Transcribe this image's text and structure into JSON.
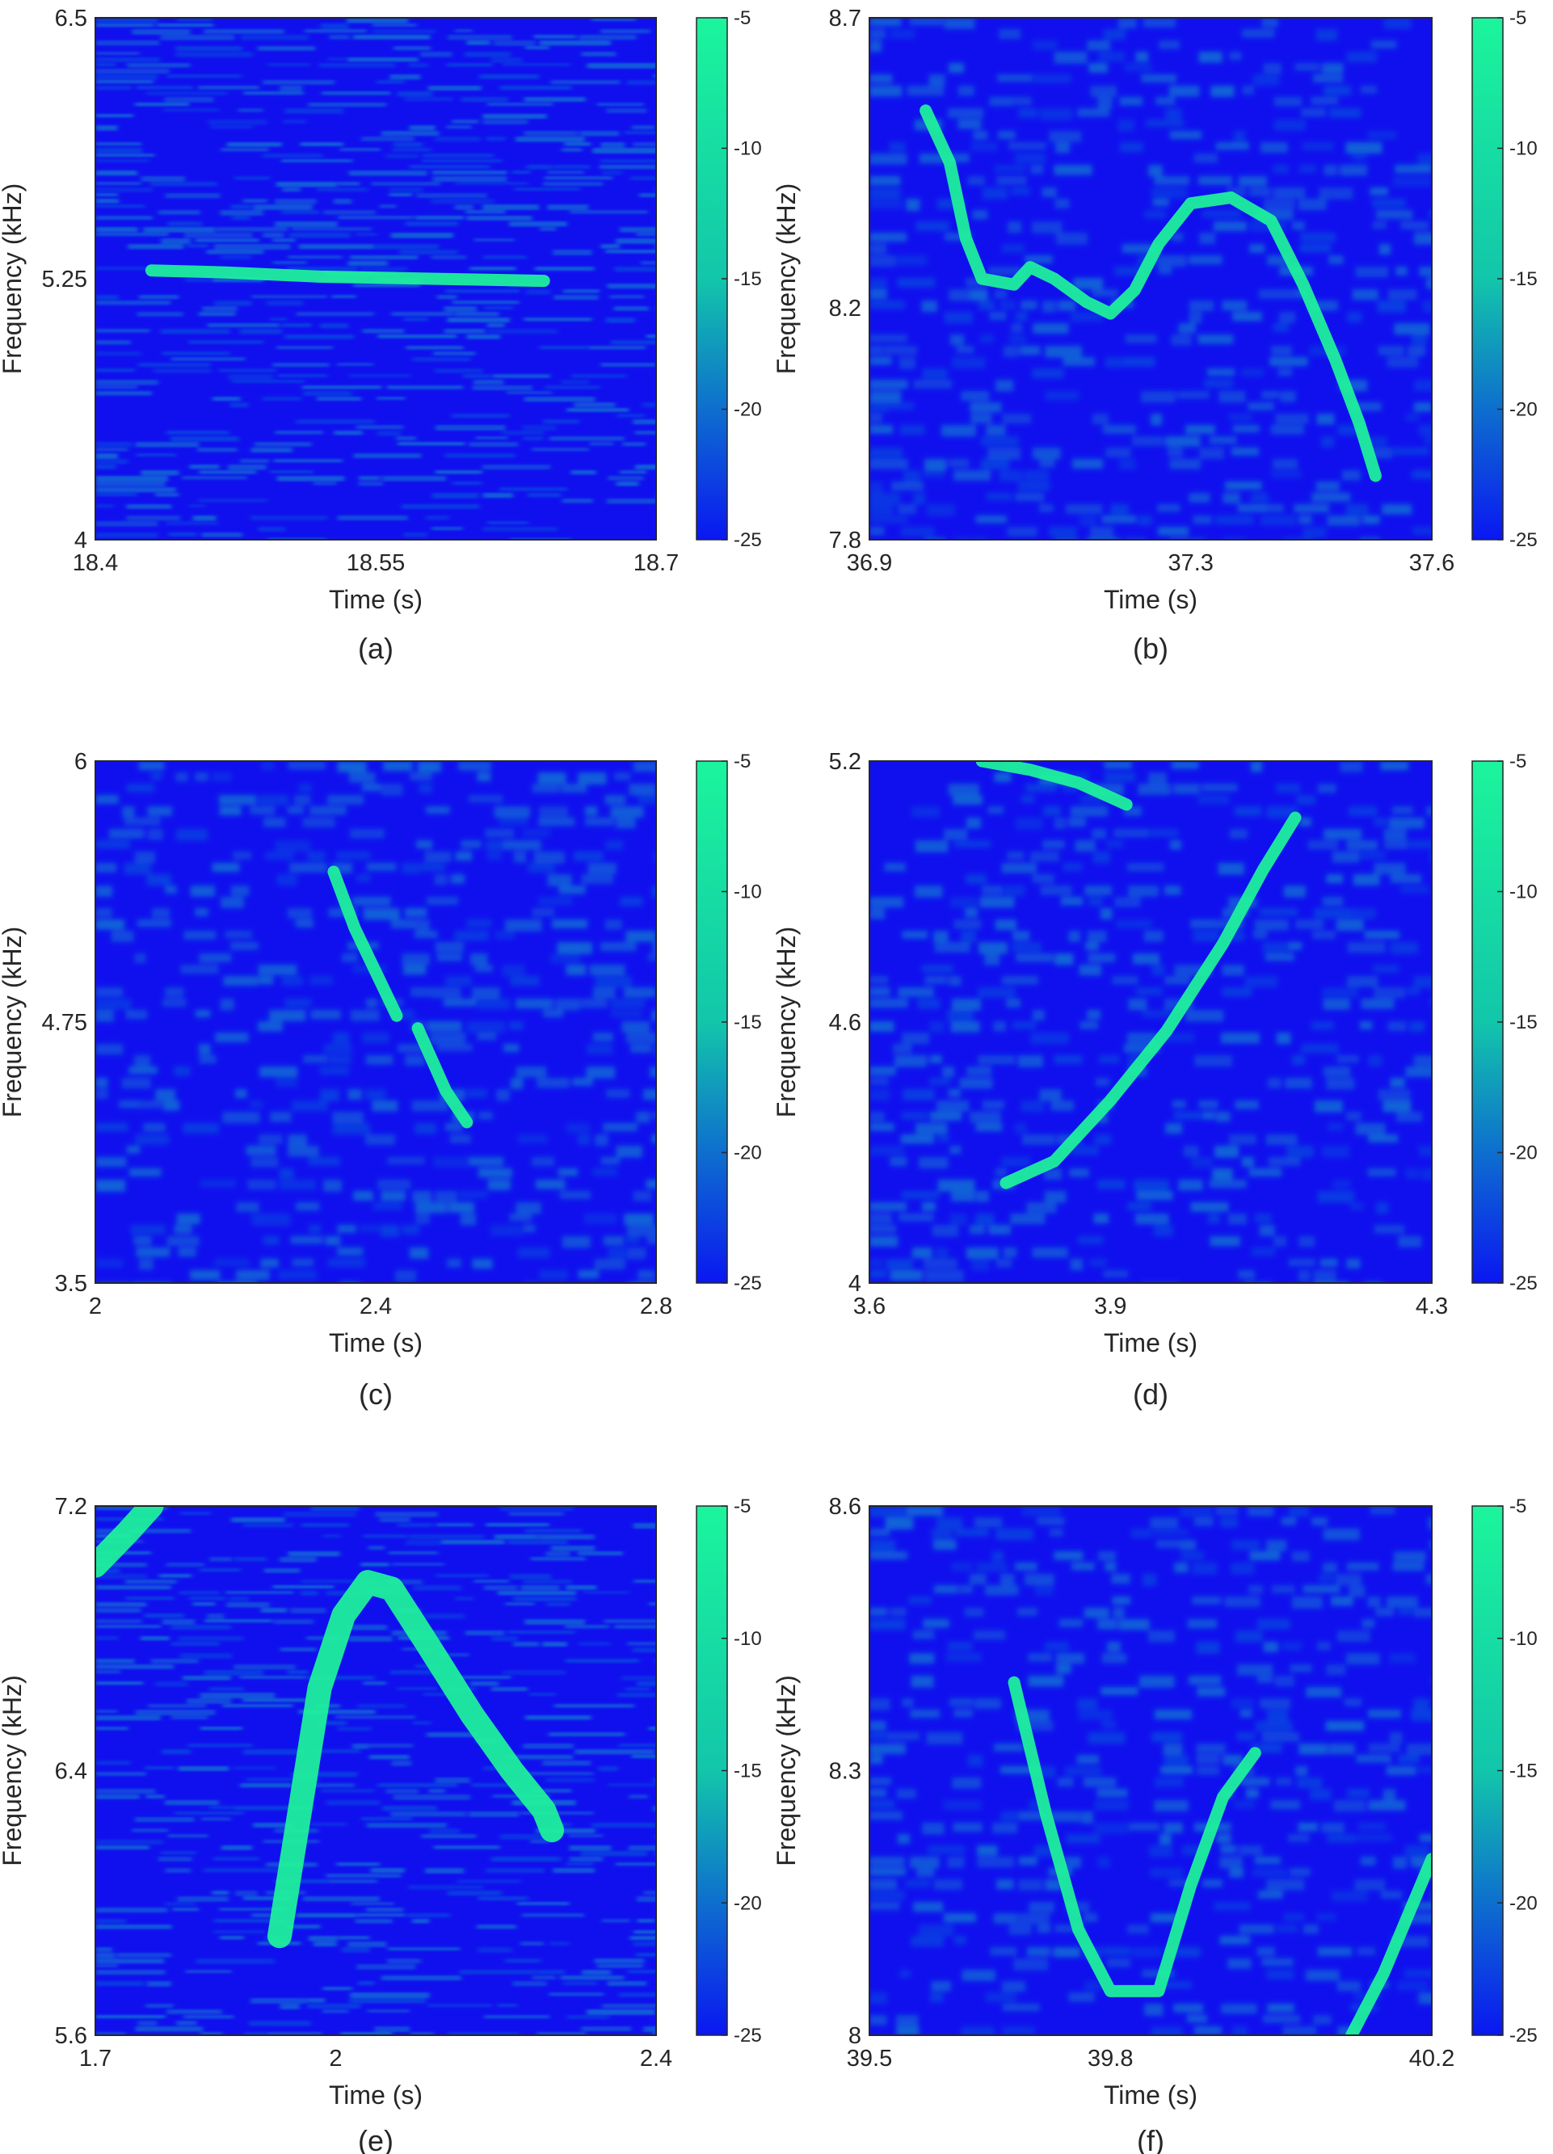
{
  "figure": {
    "colorbar": {
      "ticks": [
        "-5",
        "-10",
        "-15",
        "-20",
        "-25"
      ],
      "min": -25,
      "max": -5,
      "colormap": [
        "#0a17f2",
        "#12c6aa",
        "#1bf59c"
      ]
    },
    "colors": {
      "background": "#1010ee",
      "noise": "#0f7ad2",
      "ridge": "#1ef59a",
      "frame": "#262626"
    }
  },
  "chart_data": [
    {
      "type": "heatmap",
      "caption": "(a)",
      "xlabel": "Time (s)",
      "ylabel": "Frequency (kHz)",
      "xlim": [
        18.4,
        18.7
      ],
      "ylim": [
        4,
        6.5
      ],
      "xticks": [
        "18.4",
        "18.55",
        "18.7"
      ],
      "yticks": [
        "4",
        "5.25",
        "6.5"
      ],
      "clim": [
        -25,
        -5
      ],
      "noise": "horizontal",
      "ridges": [
        {
          "points": [
            [
              18.43,
              5.29
            ],
            [
              18.47,
              5.28
            ],
            [
              18.52,
              5.26
            ],
            [
              18.58,
              5.25
            ],
            [
              18.64,
              5.24
            ]
          ]
        }
      ]
    },
    {
      "type": "heatmap",
      "caption": "(b)",
      "xlabel": "Time (s)",
      "ylabel": "Frequency (kHz)",
      "xlim": [
        36.9,
        37.6
      ],
      "ylim": [
        7.8,
        8.7
      ],
      "xticks": [
        "36.9",
        "37.3",
        "37.6"
      ],
      "yticks": [
        "7.8",
        "8.2",
        "8.7"
      ],
      "clim": [
        -25,
        -5
      ],
      "noise": "blocky",
      "ridges": [
        {
          "points": [
            [
              36.97,
              8.54
            ],
            [
              37.0,
              8.45
            ],
            [
              37.02,
              8.32
            ],
            [
              37.04,
              8.25
            ],
            [
              37.08,
              8.24
            ],
            [
              37.1,
              8.27
            ],
            [
              37.13,
              8.25
            ],
            [
              37.17,
              8.21
            ],
            [
              37.2,
              8.19
            ],
            [
              37.23,
              8.23
            ],
            [
              37.26,
              8.31
            ],
            [
              37.3,
              8.38
            ],
            [
              37.35,
              8.39
            ],
            [
              37.4,
              8.35
            ],
            [
              37.44,
              8.24
            ],
            [
              37.48,
              8.11
            ],
            [
              37.51,
              8.0
            ],
            [
              37.53,
              7.91
            ]
          ]
        }
      ]
    },
    {
      "type": "heatmap",
      "caption": "(c)",
      "xlabel": "Time (s)",
      "ylabel": "Frequency (kHz)",
      "xlim": [
        2,
        2.8
      ],
      "ylim": [
        3.5,
        6
      ],
      "xticks": [
        "2",
        "2.4",
        "2.8"
      ],
      "yticks": [
        "3.5",
        "4.75",
        "6"
      ],
      "clim": [
        -25,
        -5
      ],
      "noise": "blocky",
      "ridges": [
        {
          "points": [
            [
              2.34,
              5.47
            ],
            [
              2.37,
              5.2
            ],
            [
              2.41,
              4.92
            ],
            [
              2.43,
              4.78
            ]
          ]
        },
        {
          "points": [
            [
              2.46,
              4.72
            ],
            [
              2.5,
              4.42
            ],
            [
              2.53,
              4.27
            ]
          ]
        }
      ]
    },
    {
      "type": "heatmap",
      "caption": "(d)",
      "xlabel": "Time (s)",
      "ylabel": "Frequency (kHz)",
      "xlim": [
        3.6,
        4.3
      ],
      "ylim": [
        4,
        5.2
      ],
      "xticks": [
        "3.6",
        "3.9",
        "4.3"
      ],
      "yticks": [
        "4",
        "4.6",
        "5.2"
      ],
      "clim": [
        -25,
        -5
      ],
      "noise": "blocky",
      "ridges": [
        {
          "points": [
            [
              3.77,
              4.23
            ],
            [
              3.83,
              4.28
            ],
            [
              3.9,
              4.42
            ],
            [
              3.97,
              4.58
            ],
            [
              4.04,
              4.78
            ],
            [
              4.09,
              4.95
            ],
            [
              4.13,
              5.07
            ]
          ]
        },
        {
          "points": [
            [
              3.74,
              5.2
            ],
            [
              3.8,
              5.18
            ],
            [
              3.86,
              5.15
            ],
            [
              3.92,
              5.1
            ]
          ]
        }
      ]
    },
    {
      "type": "heatmap",
      "caption": "(e)",
      "xlabel": "Time (s)",
      "ylabel": "Frequency (kHz)",
      "xlim": [
        1.7,
        2.4
      ],
      "ylim": [
        5.6,
        7.2
      ],
      "xticks": [
        "1.7",
        "2",
        "2.4"
      ],
      "yticks": [
        "5.6",
        "6.4",
        "7.2"
      ],
      "clim": [
        -25,
        -5
      ],
      "noise": "horizontal",
      "ridges": [
        {
          "points": [
            [
              1.93,
              5.9
            ],
            [
              1.94,
              6.05
            ],
            [
              1.96,
              6.35
            ],
            [
              1.98,
              6.65
            ],
            [
              2.01,
              6.87
            ],
            [
              2.04,
              6.97
            ],
            [
              2.07,
              6.95
            ],
            [
              2.11,
              6.8
            ],
            [
              2.17,
              6.57
            ],
            [
              2.22,
              6.4
            ],
            [
              2.26,
              6.28
            ],
            [
              2.27,
              6.22
            ]
          ]
        },
        {
          "points": [
            [
              1.7,
              7.02
            ],
            [
              1.74,
              7.12
            ],
            [
              1.77,
              7.2
            ]
          ]
        }
      ]
    },
    {
      "type": "heatmap",
      "caption": "(f)",
      "xlabel": "Time (s)",
      "ylabel": "Frequency (kHz)",
      "xlim": [
        39.5,
        40.2
      ],
      "ylim": [
        8,
        8.6
      ],
      "xticks": [
        "39.5",
        "39.8",
        "40.2"
      ],
      "yticks": [
        "8",
        "8.3",
        "8.6"
      ],
      "clim": [
        -25,
        -5
      ],
      "noise": "blocky",
      "ridges": [
        {
          "points": [
            [
              39.68,
              8.4
            ],
            [
              39.72,
              8.25
            ],
            [
              39.76,
              8.12
            ],
            [
              39.8,
              8.05
            ],
            [
              39.86,
              8.05
            ],
            [
              39.9,
              8.17
            ],
            [
              39.94,
              8.27
            ],
            [
              39.98,
              8.32
            ]
          ]
        },
        {
          "points": [
            [
              40.1,
              8.0
            ],
            [
              40.14,
              8.07
            ],
            [
              40.2,
              8.2
            ]
          ]
        }
      ]
    }
  ]
}
